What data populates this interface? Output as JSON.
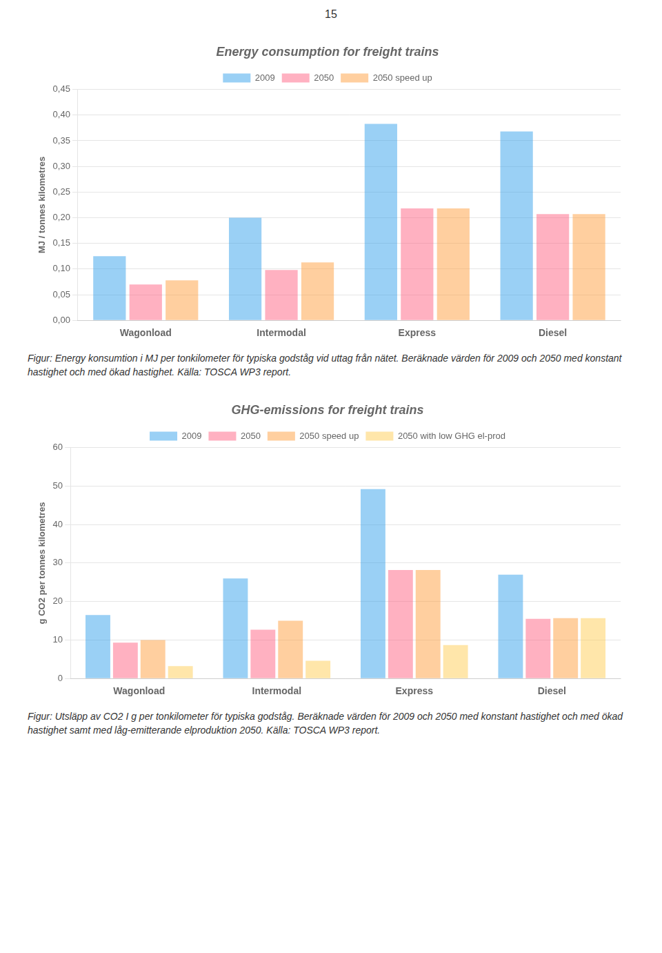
{
  "page_number": "15",
  "chart_data": [
    {
      "type": "bar",
      "title": "Energy consumption for freight trains",
      "ylabel": "MJ / tonnes kilometres",
      "categories": [
        "Wagonload",
        "Intermodal",
        "Express",
        "Diesel"
      ],
      "series": [
        {
          "name": "2009",
          "values": [
            0.125,
            0.2,
            0.383,
            0.368
          ]
        },
        {
          "name": "2050",
          "values": [
            0.07,
            0.098,
            0.218,
            0.207
          ]
        },
        {
          "name": "2050 speed up",
          "values": [
            0.078,
            0.113,
            0.218,
            0.207
          ]
        }
      ],
      "ylim": [
        0.0,
        0.45
      ],
      "yticks": [
        {
          "value": 0.0,
          "label": "0,00"
        },
        {
          "value": 0.05,
          "label": "0,05"
        },
        {
          "value": 0.1,
          "label": "0,10"
        },
        {
          "value": 0.15,
          "label": "0,15"
        },
        {
          "value": 0.2,
          "label": "0,20"
        },
        {
          "value": 0.25,
          "label": "0,25"
        },
        {
          "value": 0.3,
          "label": "0,30"
        },
        {
          "value": 0.35,
          "label": "0,35"
        },
        {
          "value": 0.4,
          "label": "0,40"
        },
        {
          "value": 0.45,
          "label": "0,45"
        }
      ],
      "grid": true,
      "legend": "top",
      "caption": "Figur: Energy konsumtion i MJ per tonkilometer för typiska godståg vid uttag från nätet. Beräknade värden för 2009 och 2050 med konstant hastighet och med ökad hastighet. Källa: TOSCA WP3 report."
    },
    {
      "type": "bar",
      "title": "GHG-emissions for freight trains",
      "ylabel": "g CO2 per tonnes kilometres",
      "categories": [
        "Wagonload",
        "Intermodal",
        "Express",
        "Diesel"
      ],
      "series": [
        {
          "name": "2009",
          "values": [
            16.5,
            26.0,
            49.2,
            27.0
          ]
        },
        {
          "name": "2050",
          "values": [
            9.3,
            12.7,
            28.2,
            15.5
          ]
        },
        {
          "name": "2050 speed up",
          "values": [
            10.0,
            15.0,
            28.2,
            15.7
          ]
        },
        {
          "name": "2050 with low GHG el-prod",
          "values": [
            3.2,
            4.6,
            8.7,
            15.7
          ]
        }
      ],
      "ylim": [
        0,
        60
      ],
      "yticks": [
        0,
        10,
        20,
        30,
        40,
        50,
        60
      ],
      "grid": true,
      "legend": "top",
      "caption": "Figur: Utsläpp av CO2 I g per tonkilometer för typiska godståg. Beräknade värden för 2009 och 2050 med konstant hastighet och med ökad hastighet samt med låg-emitterande elproduktion 2050. Källa: TOSCA WP3 report."
    }
  ]
}
